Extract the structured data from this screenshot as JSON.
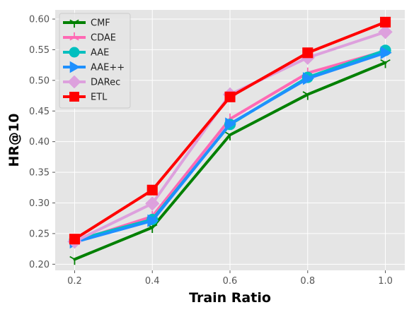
{
  "chart_data": {
    "type": "line",
    "x": [
      0.2,
      0.4,
      0.6,
      0.8,
      1.0
    ],
    "x_tick_labels": [
      "0.2",
      "0.4",
      "0.6",
      "0.8",
      "1.0"
    ],
    "y_ticks": [
      0.2,
      0.25,
      0.3,
      0.35,
      0.4,
      0.45,
      0.5,
      0.55,
      0.6
    ],
    "y_tick_labels": [
      "0.20",
      "0.25",
      "0.30",
      "0.35",
      "0.40",
      "0.45",
      "0.50",
      "0.55",
      "0.60"
    ],
    "xlim": [
      0.15,
      1.05
    ],
    "ylim": [
      0.19,
      0.615
    ],
    "xlabel": "Train Ratio",
    "ylabel": "HR@10",
    "title": "",
    "grid": true,
    "legend_position": "top-left",
    "background": "#e5e5e5",
    "series": [
      {
        "name": "CMF",
        "color": "#008000",
        "marker": "tri-down",
        "values": [
          0.208,
          0.26,
          0.411,
          0.477,
          0.529
        ]
      },
      {
        "name": "CDAE",
        "color": "#ff69b4",
        "marker": "tri-up",
        "values": [
          0.237,
          0.278,
          0.437,
          0.512,
          0.548
        ]
      },
      {
        "name": "AAE",
        "color": "#00bfbf",
        "marker": "circle",
        "values": [
          0.239,
          0.273,
          0.428,
          0.505,
          0.549
        ]
      },
      {
        "name": "AAE++",
        "color": "#1e90ff",
        "marker": "triangle-right",
        "values": [
          0.236,
          0.271,
          0.429,
          0.503,
          0.545
        ]
      },
      {
        "name": "DARec",
        "color": "#dda0dd",
        "marker": "diamond",
        "values": [
          0.237,
          0.299,
          0.477,
          0.537,
          0.579
        ]
      },
      {
        "name": "ETL",
        "color": "#ff0000",
        "marker": "square",
        "values": [
          0.241,
          0.321,
          0.473,
          0.545,
          0.595
        ]
      }
    ]
  }
}
